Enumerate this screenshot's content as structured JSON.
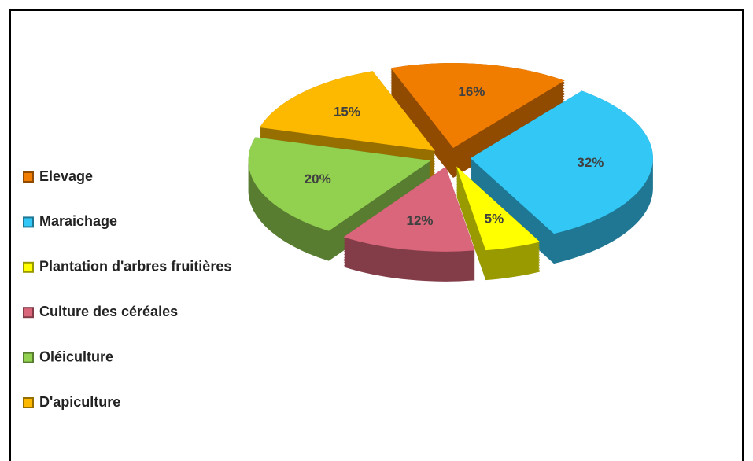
{
  "chart_data": {
    "type": "pie3d",
    "categories": [
      "Elevage",
      "Maraichage",
      "Plantation d'arbres fruitières",
      "Culture des céréales",
      "Oléiculture",
      "D'apiculture"
    ],
    "values": [
      16,
      32,
      5,
      12,
      20,
      15
    ],
    "value_labels": [
      "16%",
      "32%",
      "5%",
      "12%",
      "20%",
      "15%"
    ],
    "colors": [
      "#f07d00",
      "#33c7f5",
      "#ffff00",
      "#d9667a",
      "#92d050",
      "#fcb900"
    ],
    "legend": "left"
  }
}
